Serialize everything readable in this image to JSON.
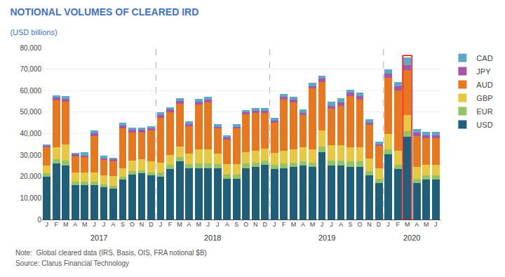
{
  "chart_data": {
    "type": "bar",
    "stacked": true,
    "title": "NOTIONAL VOLUMES OF CLEARED IRD",
    "title_color": "#4472C4",
    "subtitle": "(USD billions)",
    "subtitle_color": "#4472C4",
    "annotations": [
      "Note:  Global cleared data (IRS, Basis, OIS, FRA notional $B)",
      "Source: Clarus Financial Technology"
    ],
    "categories": [
      "J",
      "F",
      "M",
      "A",
      "M",
      "J",
      "J",
      "A",
      "S",
      "O",
      "N",
      "D",
      "J",
      "F",
      "M",
      "A",
      "M",
      "J",
      "J",
      "A",
      "S",
      "O",
      "N",
      "D",
      "J",
      "F",
      "M",
      "A",
      "M",
      "J",
      "J",
      "A",
      "S",
      "O",
      "N",
      "D",
      "J",
      "F",
      "M",
      "A",
      "M",
      "J"
    ],
    "category_groups": [
      {
        "label": "2017",
        "count": 12
      },
      {
        "label": "2018",
        "count": 12
      },
      {
        "label": "2019",
        "count": 12
      },
      {
        "label": "2020",
        "count": 6
      }
    ],
    "highlight_index": 38,
    "series": [
      {
        "name": "USD",
        "color": "#1F5F7A",
        "values": [
          20000,
          26000,
          25000,
          16000,
          16000,
          16000,
          15000,
          14500,
          18500,
          21000,
          21500,
          20500,
          20000,
          23500,
          27000,
          24000,
          24000,
          24000,
          24000,
          19000,
          19000,
          24000,
          24500,
          25500,
          23500,
          24000,
          24500,
          25000,
          24500,
          31500,
          25000,
          25000,
          24500,
          24500,
          20500,
          17000,
          30500,
          23500,
          38500,
          17000,
          18500,
          18500
        ]
      },
      {
        "name": "EUR",
        "color": "#92C464",
        "values": [
          1500,
          2000,
          2500,
          1500,
          1500,
          1500,
          1200,
          1200,
          1500,
          1500,
          1500,
          1500,
          2000,
          2000,
          2000,
          1800,
          2000,
          2000,
          1800,
          1800,
          1800,
          2000,
          2000,
          2000,
          2000,
          2000,
          2000,
          2000,
          2000,
          2500,
          2500,
          2500,
          2500,
          2500,
          2000,
          1800,
          2000,
          2000,
          2500,
          2000,
          2000,
          2000
        ]
      },
      {
        "name": "GBP",
        "color": "#E8C840",
        "values": [
          3500,
          5500,
          7500,
          4500,
          4500,
          4500,
          4500,
          4500,
          4000,
          5000,
          5000,
          5000,
          4500,
          4500,
          5000,
          5000,
          6500,
          6500,
          5000,
          5000,
          5000,
          5500,
          5500,
          5500,
          5500,
          6000,
          6000,
          6500,
          6000,
          7500,
          7000,
          7000,
          6500,
          6500,
          6000,
          5000,
          7500,
          6500,
          7500,
          5500,
          5000,
          5000
        ]
      },
      {
        "name": "AUD",
        "color": "#E87820",
        "values": [
          8500,
          22000,
          20000,
          7500,
          7000,
          17000,
          7000,
          7000,
          18500,
          13000,
          12500,
          14500,
          21000,
          20000,
          20000,
          12500,
          21000,
          22000,
          11500,
          11500,
          16500,
          17500,
          17500,
          16500,
          14000,
          24000,
          22000,
          15000,
          28500,
          22500,
          17000,
          18500,
          24000,
          22500,
          15500,
          10500,
          26000,
          28000,
          21000,
          14500,
          12500,
          12500
        ]
      },
      {
        "name": "JPY",
        "color": "#A855A8",
        "values": [
          800,
          1200,
          1200,
          800,
          800,
          1200,
          800,
          800,
          1200,
          1200,
          1200,
          800,
          1200,
          1200,
          1200,
          1200,
          1200,
          1200,
          800,
          800,
          800,
          800,
          1200,
          1200,
          1200,
          1200,
          1200,
          1200,
          1200,
          1500,
          1500,
          1500,
          1500,
          1500,
          1200,
          800,
          2000,
          2000,
          2500,
          1500,
          1200,
          1200
        ]
      },
      {
        "name": "CAD",
        "color": "#5BA8C8",
        "values": [
          800,
          1200,
          1200,
          800,
          1500,
          1200,
          1200,
          800,
          1200,
          1200,
          1200,
          1200,
          1200,
          1200,
          1200,
          1200,
          1500,
          1500,
          1200,
          1200,
          1200,
          1200,
          1200,
          1200,
          1200,
          1200,
          1500,
          1500,
          1500,
          1500,
          2000,
          2000,
          1500,
          1500,
          1500,
          1200,
          2000,
          2000,
          3500,
          1500,
          1500,
          1500
        ]
      }
    ],
    "ylim": [
      0,
      80000
    ],
    "yticks": [
      0,
      {
        "value": 10000,
        "label": "10,000"
      },
      {
        "value": 20000,
        "label": "20,000"
      },
      {
        "value": 30000,
        "label": "30,000"
      },
      {
        "value": 40000,
        "label": "40,000"
      },
      {
        "value": 50000,
        "label": "50,000"
      },
      {
        "value": 60000,
        "label": "60,000"
      },
      {
        "value": 70000,
        "label": "70,000"
      },
      {
        "value": 80000,
        "label": "80,000"
      }
    ],
    "grid": true,
    "legend": "right"
  }
}
